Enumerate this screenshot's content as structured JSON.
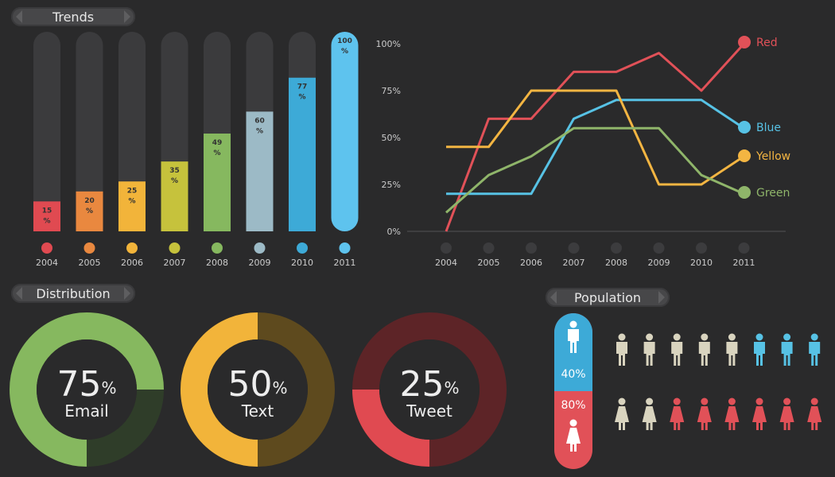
{
  "headers": {
    "trends": "Trends",
    "distribution": "Distribution",
    "population": "Population"
  },
  "colors": {
    "red": "#e04a51",
    "orange": "#e9883f",
    "yellow": "#f2b43a",
    "olive": "#c6c23c",
    "green": "#86b85f",
    "steel": "#9cbac6",
    "sky": "#3daad7",
    "light_blue": "#5ec3ee",
    "line_red": "#e15158",
    "line_blue": "#57c2e5",
    "line_yellow": "#f3b542",
    "line_green": "#8fb56a"
  },
  "chart_data": [
    {
      "type": "bar",
      "title": "Trends",
      "categories": [
        "2004",
        "2005",
        "2006",
        "2007",
        "2008",
        "2009",
        "2010",
        "2011"
      ],
      "values": [
        15,
        20,
        25,
        35,
        49,
        60,
        77,
        100
      ],
      "value_suffix": "%",
      "ylim": [
        0,
        100
      ]
    },
    {
      "type": "line",
      "x": [
        "2004",
        "2005",
        "2006",
        "2007",
        "2008",
        "2009",
        "2010",
        "2011"
      ],
      "y_ticks": [
        "0%",
        "25%",
        "50%",
        "75%",
        "100%"
      ],
      "ylim": [
        0,
        100
      ],
      "legend_placement": "right",
      "series": [
        {
          "name": "Red",
          "values": [
            0,
            60,
            60,
            85,
            85,
            95,
            75,
            100
          ]
        },
        {
          "name": "Blue",
          "values": [
            20,
            20,
            20,
            60,
            70,
            70,
            70,
            55
          ]
        },
        {
          "name": "Yellow",
          "values": [
            45,
            45,
            75,
            75,
            75,
            25,
            25,
            40
          ]
        },
        {
          "name": "Green",
          "values": [
            10,
            30,
            40,
            55,
            55,
            55,
            30,
            20
          ]
        }
      ]
    },
    {
      "type": "pie",
      "title": "Distribution",
      "items": [
        {
          "label": "Email",
          "value": 75,
          "display": "75"
        },
        {
          "label": "Text",
          "value": 50,
          "display": "50"
        },
        {
          "label": "Tweet",
          "value": 25,
          "display": "25"
        }
      ]
    }
  ],
  "population": {
    "male_percent": "40%",
    "female_percent": "80%",
    "male_highlight": 3,
    "female_highlight": 6,
    "icons_per_row": 8
  }
}
